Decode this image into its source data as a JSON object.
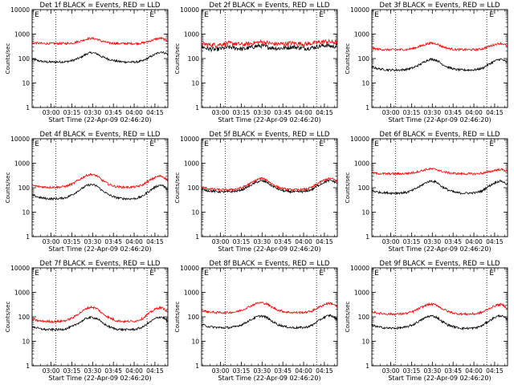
{
  "colors": {
    "events": "#000000",
    "lld": "#ff0000",
    "axis": "#000000"
  },
  "common": {
    "ylabel": "Counts/sec",
    "xlabel": "Start Time (22-Apr-09 02:46:20)",
    "yticks": [
      {
        "v": 1,
        "label": "1"
      },
      {
        "v": 10,
        "label": "10"
      },
      {
        "v": 100,
        "label": "100"
      },
      {
        "v": 1000,
        "label": "1000"
      },
      {
        "v": 10000,
        "label": "10000"
      }
    ],
    "xticks": [
      {
        "v": 13.67,
        "label": "03:00"
      },
      {
        "v": 28.67,
        "label": "03:15"
      },
      {
        "v": 43.67,
        "label": "03:30"
      },
      {
        "v": 58.67,
        "label": "03:45"
      },
      {
        "v": 73.67,
        "label": "04:00"
      },
      {
        "v": 88.67,
        "label": "04:15"
      }
    ],
    "xlim": [
      0,
      98
    ],
    "ylim": [
      1,
      10000
    ],
    "yscale": "log",
    "markers": [
      {
        "x": 3.5,
        "label": "E"
      },
      {
        "x": 86.5,
        "label": "E"
      }
    ],
    "vlines": [
      17,
      83
    ]
  },
  "chart_data": [
    {
      "type": "line",
      "title": "Det 1f BLACK = Events, RED = LLD",
      "series": [
        {
          "name": "Events",
          "x": [
            0,
            5,
            10,
            15,
            20,
            25,
            30,
            35,
            40,
            43,
            47,
            50,
            55,
            60,
            65,
            70,
            75,
            80,
            85,
            90,
            93,
            95,
            98
          ],
          "y": [
            95,
            80,
            73,
            72,
            73,
            75,
            85,
            110,
            160,
            175,
            155,
            120,
            95,
            80,
            73,
            72,
            72,
            80,
            115,
            160,
            190,
            175,
            150
          ]
        },
        {
          "name": "LLD",
          "x": [
            0,
            5,
            10,
            15,
            20,
            25,
            30,
            35,
            40,
            43,
            47,
            50,
            55,
            60,
            65,
            70,
            75,
            80,
            85,
            90,
            93,
            95,
            98
          ],
          "y": [
            450,
            420,
            410,
            410,
            410,
            415,
            440,
            520,
            640,
            670,
            620,
            520,
            440,
            415,
            410,
            410,
            410,
            430,
            520,
            640,
            680,
            620,
            540
          ]
        }
      ]
    },
    {
      "type": "line",
      "title": "Det 2f BLACK = Events, RED = LLD",
      "series": [
        {
          "name": "Events",
          "x": [
            0,
            5,
            10,
            15,
            20,
            25,
            30,
            35,
            40,
            43,
            47,
            50,
            55,
            60,
            65,
            70,
            75,
            80,
            85,
            90,
            93,
            95,
            98
          ],
          "y": [
            300,
            250,
            230,
            260,
            290,
            270,
            240,
            280,
            320,
            330,
            300,
            280,
            260,
            270,
            300,
            280,
            260,
            280,
            320,
            350,
            330,
            300,
            340
          ]
        },
        {
          "name": "LLD",
          "x": [
            0,
            5,
            10,
            15,
            20,
            25,
            30,
            35,
            40,
            43,
            47,
            50,
            55,
            60,
            65,
            70,
            75,
            80,
            85,
            90,
            93,
            95,
            98
          ],
          "y": [
            400,
            370,
            360,
            390,
            420,
            400,
            370,
            410,
            450,
            470,
            440,
            410,
            390,
            400,
            430,
            410,
            390,
            420,
            460,
            500,
            480,
            450,
            480
          ]
        }
      ]
    },
    {
      "type": "line",
      "title": "Det 3f BLACK = Events, RED = LLD",
      "series": [
        {
          "name": "Events",
          "x": [
            0,
            5,
            10,
            15,
            20,
            25,
            30,
            35,
            40,
            43,
            47,
            50,
            55,
            60,
            65,
            70,
            75,
            80,
            85,
            90,
            93,
            95,
            98
          ],
          "y": [
            45,
            38,
            35,
            34,
            34,
            36,
            42,
            58,
            85,
            95,
            85,
            62,
            44,
            36,
            34,
            34,
            35,
            40,
            60,
            85,
            95,
            85,
            65
          ]
        },
        {
          "name": "LLD",
          "x": [
            0,
            5,
            10,
            15,
            20,
            25,
            30,
            35,
            40,
            43,
            47,
            50,
            55,
            60,
            65,
            70,
            75,
            80,
            85,
            90,
            93,
            95,
            98
          ],
          "y": [
            260,
            240,
            230,
            230,
            230,
            235,
            260,
            320,
            400,
            430,
            400,
            320,
            260,
            235,
            230,
            230,
            230,
            250,
            320,
            390,
            420,
            390,
            320
          ]
        }
      ]
    },
    {
      "type": "line",
      "title": "Det 4f BLACK = Events, RED = LLD",
      "series": [
        {
          "name": "Events",
          "x": [
            0,
            5,
            10,
            15,
            20,
            25,
            30,
            35,
            40,
            43,
            47,
            50,
            55,
            60,
            65,
            70,
            75,
            80,
            85,
            90,
            93,
            95,
            98
          ],
          "y": [
            50,
            40,
            36,
            35,
            36,
            40,
            55,
            85,
            125,
            135,
            115,
            80,
            52,
            40,
            36,
            35,
            36,
            45,
            75,
            115,
            130,
            115,
            80
          ]
        },
        {
          "name": "LLD",
          "x": [
            0,
            5,
            10,
            15,
            20,
            25,
            30,
            35,
            40,
            43,
            47,
            50,
            55,
            60,
            65,
            70,
            75,
            80,
            85,
            90,
            93,
            95,
            98
          ],
          "y": [
            125,
            110,
            105,
            105,
            106,
            115,
            150,
            230,
            330,
            350,
            300,
            210,
            140,
            112,
            105,
            105,
            108,
            130,
            200,
            280,
            300,
            270,
            200
          ]
        }
      ]
    },
    {
      "type": "line",
      "title": "Det 5f BLACK = Events, RED = LLD",
      "series": [
        {
          "name": "Events",
          "x": [
            0,
            5,
            10,
            15,
            20,
            25,
            30,
            35,
            40,
            43,
            47,
            50,
            55,
            60,
            65,
            70,
            75,
            80,
            85,
            90,
            93,
            95,
            98
          ],
          "y": [
            85,
            75,
            70,
            68,
            68,
            72,
            85,
            120,
            170,
            190,
            170,
            125,
            88,
            72,
            68,
            68,
            70,
            85,
            130,
            180,
            200,
            185,
            150
          ]
        },
        {
          "name": "LLD",
          "x": [
            0,
            5,
            10,
            15,
            20,
            25,
            30,
            35,
            40,
            43,
            47,
            50,
            55,
            60,
            65,
            70,
            75,
            80,
            85,
            90,
            93,
            95,
            98
          ],
          "y": [
            105,
            90,
            85,
            82,
            82,
            88,
            105,
            145,
            210,
            240,
            210,
            150,
            105,
            88,
            82,
            82,
            85,
            105,
            160,
            220,
            240,
            225,
            180
          ]
        }
      ]
    },
    {
      "type": "line",
      "title": "Det 6f BLACK = Events, RED = LLD",
      "series": [
        {
          "name": "Events",
          "x": [
            0,
            5,
            10,
            15,
            20,
            25,
            30,
            35,
            40,
            43,
            47,
            50,
            55,
            60,
            65,
            70,
            75,
            80,
            85,
            90,
            93,
            95,
            98
          ],
          "y": [
            75,
            65,
            62,
            60,
            61,
            64,
            80,
            115,
            170,
            190,
            165,
            115,
            80,
            64,
            60,
            60,
            62,
            75,
            120,
            170,
            190,
            170,
            130
          ]
        },
        {
          "name": "LLD",
          "x": [
            0,
            5,
            10,
            15,
            20,
            25,
            30,
            35,
            40,
            43,
            47,
            50,
            55,
            60,
            65,
            70,
            75,
            80,
            85,
            90,
            93,
            95,
            98
          ],
          "y": [
            400,
            380,
            370,
            370,
            370,
            380,
            410,
            480,
            560,
            590,
            550,
            470,
            410,
            380,
            370,
            370,
            370,
            390,
            450,
            530,
            560,
            530,
            460
          ]
        }
      ]
    },
    {
      "type": "line",
      "title": "Det 7f BLACK = Events, RED = LLD",
      "series": [
        {
          "name": "Events",
          "x": [
            0,
            5,
            10,
            15,
            20,
            25,
            30,
            35,
            40,
            43,
            47,
            50,
            55,
            60,
            65,
            70,
            75,
            80,
            85,
            90,
            93,
            95,
            98
          ],
          "y": [
            40,
            33,
            30,
            30,
            30,
            33,
            42,
            62,
            90,
            95,
            85,
            60,
            40,
            32,
            30,
            30,
            31,
            38,
            60,
            90,
            100,
            90,
            65
          ]
        },
        {
          "name": "LLD",
          "x": [
            0,
            5,
            10,
            15,
            20,
            25,
            30,
            35,
            40,
            43,
            47,
            50,
            55,
            60,
            65,
            70,
            75,
            80,
            85,
            90,
            93,
            95,
            98
          ],
          "y": [
            80,
            68,
            65,
            64,
            65,
            72,
            95,
            150,
            230,
            250,
            215,
            145,
            95,
            72,
            65,
            65,
            67,
            85,
            145,
            220,
            240,
            215,
            150
          ]
        }
      ]
    },
    {
      "type": "line",
      "title": "Det 8f BLACK = Events, RED = LLD",
      "series": [
        {
          "name": "Events",
          "x": [
            0,
            5,
            10,
            15,
            20,
            25,
            30,
            35,
            40,
            43,
            47,
            50,
            55,
            60,
            65,
            70,
            75,
            80,
            85,
            90,
            93,
            95,
            98
          ],
          "y": [
            48,
            40,
            37,
            36,
            36,
            40,
            50,
            72,
            100,
            110,
            95,
            70,
            48,
            40,
            36,
            36,
            37,
            45,
            72,
            105,
            115,
            100,
            75
          ]
        },
        {
          "name": "LLD",
          "x": [
            0,
            5,
            10,
            15,
            20,
            25,
            30,
            35,
            40,
            43,
            47,
            50,
            55,
            60,
            65,
            70,
            75,
            80,
            85,
            90,
            93,
            95,
            98
          ],
          "y": [
            180,
            160,
            150,
            150,
            150,
            160,
            195,
            270,
            360,
            380,
            340,
            260,
            190,
            160,
            150,
            150,
            152,
            175,
            250,
            340,
            360,
            330,
            250
          ]
        }
      ]
    },
    {
      "type": "line",
      "title": "Det 9f BLACK = Events, RED = LLD",
      "series": [
        {
          "name": "Events",
          "x": [
            0,
            5,
            10,
            15,
            20,
            25,
            30,
            35,
            40,
            43,
            47,
            50,
            55,
            60,
            65,
            70,
            75,
            80,
            85,
            90,
            93,
            95,
            98
          ],
          "y": [
            45,
            38,
            35,
            34,
            35,
            38,
            48,
            70,
            100,
            110,
            95,
            68,
            46,
            38,
            34,
            34,
            35,
            44,
            70,
            102,
            112,
            100,
            72
          ]
        },
        {
          "name": "LLD",
          "x": [
            0,
            5,
            10,
            15,
            20,
            25,
            30,
            35,
            40,
            43,
            47,
            50,
            55,
            60,
            65,
            70,
            75,
            80,
            85,
            90,
            93,
            95,
            98
          ],
          "y": [
            160,
            140,
            132,
            130,
            130,
            138,
            165,
            230,
            310,
            330,
            300,
            225,
            165,
            138,
            130,
            130,
            132,
            155,
            220,
            300,
            320,
            295,
            220
          ]
        }
      ]
    }
  ]
}
